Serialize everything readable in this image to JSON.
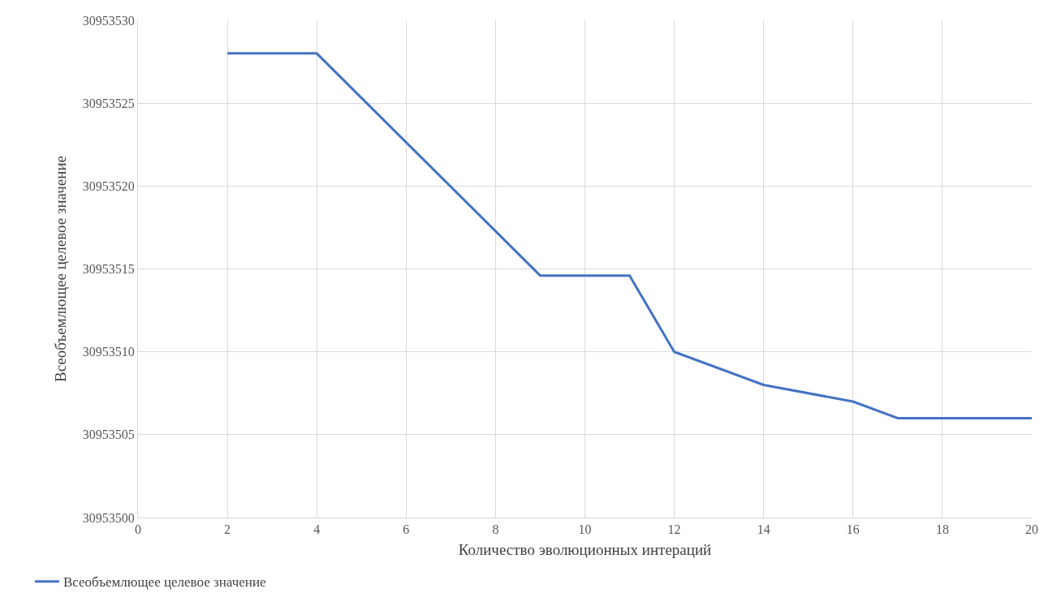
{
  "chart_data": {
    "type": "line",
    "xlabel": "Количество эволюционных интераций",
    "ylabel": "Всеобъемлющее целевое значение",
    "x": [
      2,
      4,
      9,
      11,
      12,
      14,
      16,
      17,
      20
    ],
    "series": [
      {
        "name": "Всеобъемлющее целевое значение",
        "color": "#4472c4",
        "values": [
          30953528,
          30953528,
          30953514.6,
          30953514.6,
          30953510,
          30953508,
          30953507,
          30953506,
          30953506
        ]
      }
    ],
    "xlim": [
      0,
      20
    ],
    "xticks": [
      0,
      2,
      4,
      6,
      8,
      10,
      12,
      14,
      16,
      18,
      20
    ],
    "ylim": [
      30953500,
      30953530
    ],
    "yticks": [
      30953500,
      30953505,
      30953510,
      30953515,
      30953520,
      30953525,
      30953530
    ],
    "grid": true,
    "legend": "bottom left",
    "marker": "none",
    "line_style": "solid"
  }
}
